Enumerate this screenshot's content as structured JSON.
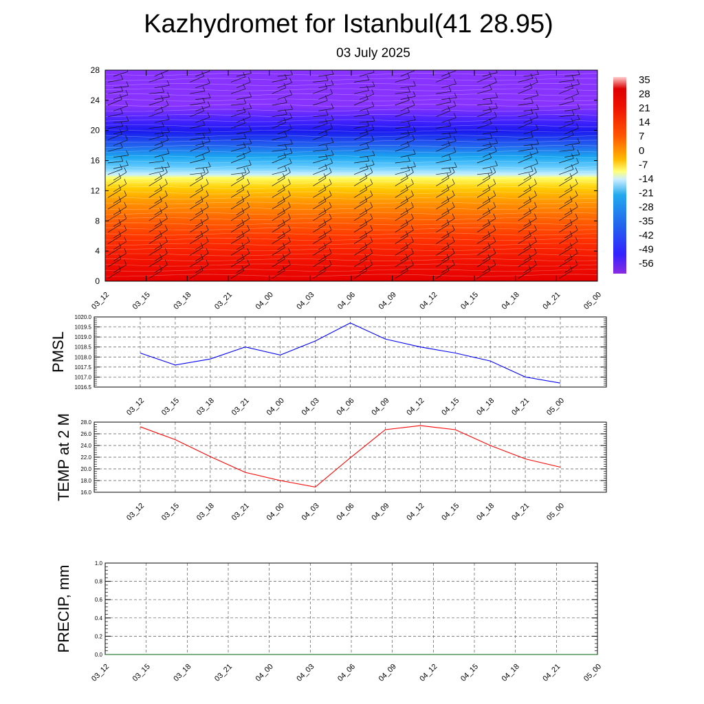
{
  "title": "Kazhydromet for Istanbul(41 28.95)",
  "subtitle": "03 July 2025",
  "time_labels": [
    "03_12",
    "03_15",
    "03_18",
    "03_21",
    "04_00",
    "04_03",
    "04_06",
    "04_09",
    "04_12",
    "04_15",
    "04_18",
    "04_21",
    "05_00"
  ],
  "colorbar": {
    "labels": [
      "35",
      "28",
      "21",
      "14",
      "7",
      "0",
      "-7",
      "-14",
      "-21",
      "-28",
      "-35",
      "-42",
      "-49",
      "-56"
    ]
  },
  "chart_data": [
    {
      "type": "heatmap",
      "title": "Kazhydromet for Istanbul(41 28.95)",
      "subtitle": "03 July 2025",
      "categories": [
        "03_12",
        "03_15",
        "03_18",
        "03_21",
        "04_00",
        "04_03",
        "04_06",
        "04_09",
        "04_12",
        "04_15",
        "04_18",
        "04_21",
        "05_00"
      ],
      "ylim": [
        0,
        28
      ],
      "yticks": [
        0,
        4,
        8,
        12,
        16,
        20,
        24,
        28
      ],
      "color_scale": [
        "35",
        "28",
        "21",
        "14",
        "7",
        "0",
        "-7",
        "-14",
        "-21",
        "-28",
        "-35",
        "-42",
        "-49",
        "-56"
      ],
      "temperature_profile": [
        {
          "y": 0,
          "value": 28
        },
        {
          "y": 4,
          "value": 21
        },
        {
          "y": 8,
          "value": 14
        },
        {
          "y": 12,
          "value": 7
        },
        {
          "y": 14,
          "value": -10
        },
        {
          "y": 16,
          "value": -28
        },
        {
          "y": 18,
          "value": -38
        },
        {
          "y": 20,
          "value": -49
        },
        {
          "y": 22,
          "value": -56
        },
        {
          "y": 25,
          "value": -60
        },
        {
          "y": 28,
          "value": -60
        }
      ],
      "overlay": "wind barbs"
    },
    {
      "type": "line",
      "ylabel": "PMSL",
      "categories": [
        "03_12",
        "03_15",
        "03_18",
        "03_21",
        "04_00",
        "04_03",
        "04_06",
        "04_09",
        "04_12",
        "04_15",
        "04_18",
        "04_21",
        "05_00"
      ],
      "yticks": [
        "1016.5",
        "1017.0",
        "1017.5",
        "1018.0",
        "1018.5",
        "1019.0",
        "1019.5",
        "1020.0"
      ],
      "ylim": [
        1016.5,
        1020.0
      ],
      "grid": true,
      "series": [
        {
          "color": "#0000ff",
          "values": [
            1018.2,
            1017.6,
            1017.9,
            1018.5,
            1018.1,
            1018.8,
            1019.7,
            1018.9,
            1018.5,
            1018.2,
            1017.8,
            1017.0,
            1016.7
          ]
        }
      ]
    },
    {
      "type": "line",
      "ylabel": "TEMP at 2 M",
      "categories": [
        "03_12",
        "03_15",
        "03_18",
        "03_21",
        "04_00",
        "04_03",
        "04_06",
        "04_09",
        "04_12",
        "04_15",
        "04_18",
        "04_21",
        "05_00"
      ],
      "yticks": [
        "16.0",
        "18.0",
        "20.0",
        "22.0",
        "24.0",
        "26.0",
        "28.0"
      ],
      "ylim": [
        16.0,
        28.0
      ],
      "grid": true,
      "series": [
        {
          "color": "#ff0000",
          "values": [
            27.2,
            25.0,
            22.1,
            19.4,
            18.0,
            16.9,
            21.9,
            26.7,
            27.4,
            26.7,
            24.0,
            21.7,
            20.3
          ]
        }
      ]
    },
    {
      "type": "line",
      "ylabel": "PRECIP, mm",
      "categories": [
        "03_12",
        "03_15",
        "03_18",
        "03_21",
        "04_00",
        "04_03",
        "04_06",
        "04_09",
        "04_12",
        "04_15",
        "04_18",
        "04_21",
        "05_00"
      ],
      "yticks": [
        "0.0",
        "0.2",
        "0.4",
        "0.6",
        "0.8",
        "1.0"
      ],
      "ylim": [
        0.0,
        1.0
      ],
      "grid": true,
      "series": [
        {
          "color": "#006400",
          "values": [
            0,
            0,
            0,
            0,
            0,
            0,
            0,
            0,
            0,
            0,
            0,
            0,
            0
          ]
        }
      ]
    }
  ]
}
